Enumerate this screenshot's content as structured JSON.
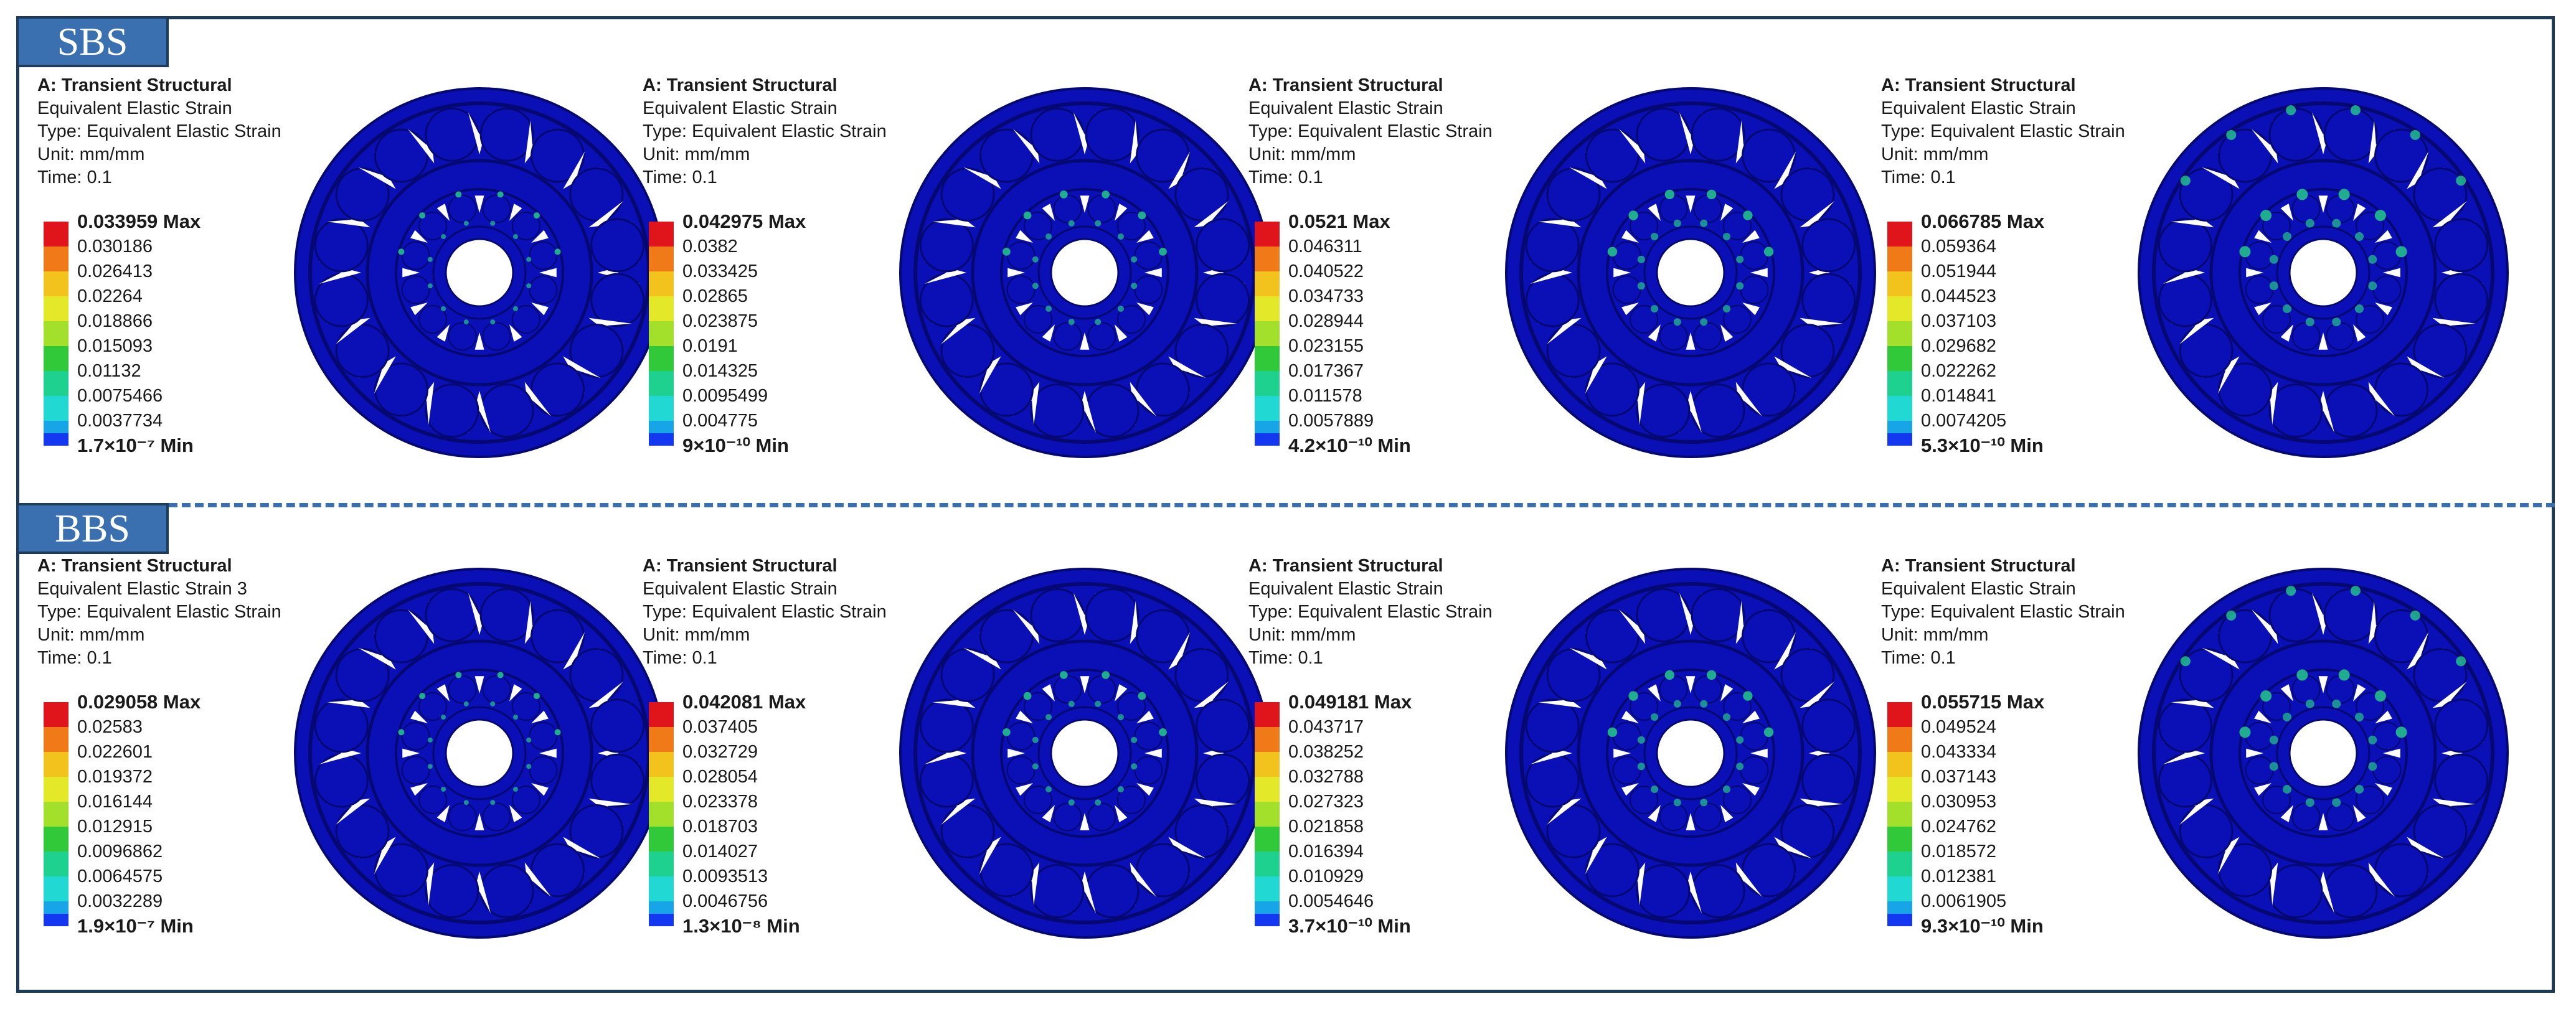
{
  "tags": {
    "top": "SBS",
    "bottom": "BBS"
  },
  "colors": {
    "frame": "#1f3b5a",
    "tag_fill": "#3a6fb0",
    "divider": "#3a6fb0",
    "legend_scale": [
      "#e0141b",
      "#f07a18",
      "#f2c21d",
      "#e3e829",
      "#a2e02b",
      "#31c83a",
      "#1fd18e",
      "#21d8d2",
      "#17a5e8",
      "#1338f0"
    ],
    "bearing_body": "#0a10b5",
    "bearing_dark": "#040870",
    "bearing_hot": "#25c98d"
  },
  "rows": [
    {
      "tag": "SBS",
      "panels": [
        {
          "title": "A: Transient Structural",
          "result": "Equivalent Elastic Strain",
          "type": "Type: Equivalent Elastic Strain",
          "unit": "Unit: mm/mm",
          "time": "Time: 0.1",
          "legend": [
            "0.033959 Max",
            "0.030186",
            "0.026413",
            "0.02264",
            "0.018866",
            "0.015093",
            "0.01132",
            "0.0075466",
            "0.0037734",
            "1.7×10⁻⁷ Min"
          ]
        },
        {
          "title": "A: Transient Structural",
          "result": "Equivalent Elastic Strain",
          "type": "Type: Equivalent Elastic Strain",
          "unit": "Unit: mm/mm",
          "time": "Time: 0.1",
          "legend": [
            "0.042975 Max",
            "0.0382",
            "0.033425",
            "0.02865",
            "0.023875",
            "0.0191",
            "0.014325",
            "0.0095499",
            "0.004775",
            "9×10⁻¹⁰ Min"
          ]
        },
        {
          "title": "A: Transient Structural",
          "result": "Equivalent Elastic Strain",
          "type": "Type: Equivalent Elastic Strain",
          "unit": "Unit: mm/mm",
          "time": "Time: 0.1",
          "legend": [
            "0.0521 Max",
            "0.046311",
            "0.040522",
            "0.034733",
            "0.028944",
            "0.023155",
            "0.017367",
            "0.011578",
            "0.0057889",
            "4.2×10⁻¹⁰ Min"
          ]
        },
        {
          "title": "A: Transient Structural",
          "result": "Equivalent Elastic Strain",
          "type": "Type: Equivalent Elastic Strain",
          "unit": "Unit: mm/mm",
          "time": "Time: 0.1",
          "legend": [
            "0.066785 Max",
            "0.059364",
            "0.051944",
            "0.044523",
            "0.037103",
            "0.029682",
            "0.022262",
            "0.014841",
            "0.0074205",
            "5.3×10⁻¹⁰ Min"
          ]
        }
      ]
    },
    {
      "tag": "BBS",
      "panels": [
        {
          "title": "A: Transient Structural",
          "result": "Equivalent Elastic Strain 3",
          "type": "Type: Equivalent Elastic Strain",
          "unit": "Unit: mm/mm",
          "time": "Time: 0.1",
          "legend": [
            "0.029058 Max",
            "0.02583",
            "0.022601",
            "0.019372",
            "0.016144",
            "0.012915",
            "0.0096862",
            "0.0064575",
            "0.0032289",
            "1.9×10⁻⁷ Min"
          ]
        },
        {
          "title": "A: Transient Structural",
          "result": "Equivalent Elastic Strain",
          "type": "Type: Equivalent Elastic Strain",
          "unit": "Unit: mm/mm",
          "time": "Time: 0.1",
          "legend": [
            "0.042081 Max",
            "0.037405",
            "0.032729",
            "0.028054",
            "0.023378",
            "0.018703",
            "0.014027",
            "0.0093513",
            "0.0046756",
            "1.3×10⁻⁸ Min"
          ]
        },
        {
          "title": "A: Transient Structural",
          "result": "Equivalent Elastic Strain",
          "type": "Type: Equivalent Elastic Strain",
          "unit": "Unit: mm/mm",
          "time": "Time: 0.1",
          "legend": [
            "0.049181 Max",
            "0.043717",
            "0.038252",
            "0.032788",
            "0.027323",
            "0.021858",
            "0.016394",
            "0.010929",
            "0.0054646",
            "3.7×10⁻¹⁰ Min"
          ]
        },
        {
          "title": "A: Transient Structural",
          "result": "Equivalent Elastic Strain",
          "type": "Type: Equivalent Elastic Strain",
          "unit": "Unit: mm/mm",
          "time": "Time: 0.1",
          "legend": [
            "0.055715 Max",
            "0.049524",
            "0.043334",
            "0.037143",
            "0.030953",
            "0.024762",
            "0.018572",
            "0.012381",
            "0.0061905",
            "9.3×10⁻¹⁰ Min"
          ]
        }
      ]
    }
  ]
}
